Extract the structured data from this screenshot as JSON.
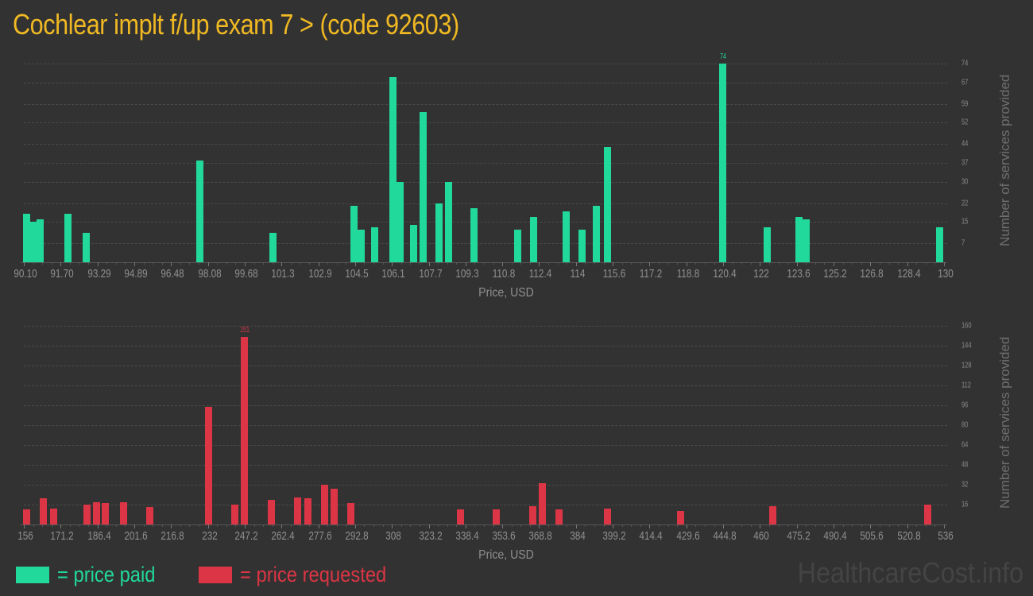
{
  "title": "Cochlear implt f/up exam 7 > (code 92603)",
  "colors": {
    "paid": "#21d99b",
    "requested": "#dc3545",
    "title": "#f0b923",
    "background": "#323232"
  },
  "legend": {
    "paid_label": "= price paid",
    "requested_label": "= price requested"
  },
  "watermark": "HealthcareCost.info",
  "chart_data": [
    {
      "type": "bar",
      "title": "Price paid",
      "xlabel": "Price, USD",
      "ylabel": "Number of services provided",
      "xlim": [
        90.1,
        130
      ],
      "ylim": [
        0,
        74
      ],
      "x_ticks": [
        "90.10",
        "91.70",
        "93.29",
        "94.89",
        "96.48",
        "98.08",
        "99.68",
        "101.3",
        "102.9",
        "104.5",
        "106.1",
        "107.7",
        "109.3",
        "110.8",
        "112.4",
        "114",
        "115.6",
        "117.2",
        "118.8",
        "120.4",
        "122",
        "123.6",
        "125.2",
        "126.8",
        "128.4",
        "130"
      ],
      "y_ticks": [
        7,
        15,
        22,
        30,
        37,
        44,
        52,
        59,
        67,
        74
      ],
      "grid": true,
      "peak_label": "74",
      "color": "#21d99b",
      "x": [
        90.2,
        90.5,
        90.8,
        92.0,
        92.8,
        97.7,
        100.9,
        104.4,
        104.7,
        105.3,
        106.1,
        106.4,
        107.0,
        107.4,
        108.1,
        108.5,
        109.6,
        111.5,
        112.2,
        113.6,
        114.3,
        114.9,
        115.4,
        120.4,
        122.3,
        123.7,
        124.0,
        129.8
      ],
      "values": [
        18,
        15,
        16,
        18,
        11,
        38,
        11,
        21,
        12,
        13,
        69,
        30,
        14,
        56,
        22,
        30,
        20,
        12,
        17,
        19,
        12,
        21,
        43,
        74,
        13,
        17,
        16,
        13
      ]
    },
    {
      "type": "bar",
      "title": "Price requested",
      "xlabel": "Price, USD",
      "ylabel": "Number of services provided",
      "xlim": [
        156,
        536
      ],
      "ylim": [
        0,
        160
      ],
      "x_ticks": [
        "156",
        "171.2",
        "186.4",
        "201.6",
        "216.8",
        "232",
        "247.2",
        "262.4",
        "277.6",
        "292.8",
        "308",
        "323.2",
        "338.4",
        "353.6",
        "368.8",
        "384",
        "399.2",
        "414.4",
        "429.6",
        "444.8",
        "460",
        "475.2",
        "490.4",
        "505.6",
        "520.8",
        "536"
      ],
      "y_ticks": [
        16,
        32,
        48,
        64,
        80,
        96,
        112,
        128,
        144,
        160
      ],
      "grid": true,
      "peak_label": "151",
      "color": "#dc3545",
      "x": [
        157,
        164,
        168,
        182,
        186,
        189.5,
        197,
        208,
        232,
        243,
        247,
        258,
        269,
        273,
        280,
        284,
        291,
        336,
        351,
        366,
        370,
        377,
        397,
        427,
        465,
        529
      ],
      "values": [
        12,
        21,
        13,
        16,
        18,
        17,
        18,
        14,
        95,
        16,
        151,
        20,
        22,
        21,
        32,
        29,
        17,
        12,
        12,
        15,
        33,
        12,
        13,
        11,
        15,
        16
      ]
    }
  ]
}
